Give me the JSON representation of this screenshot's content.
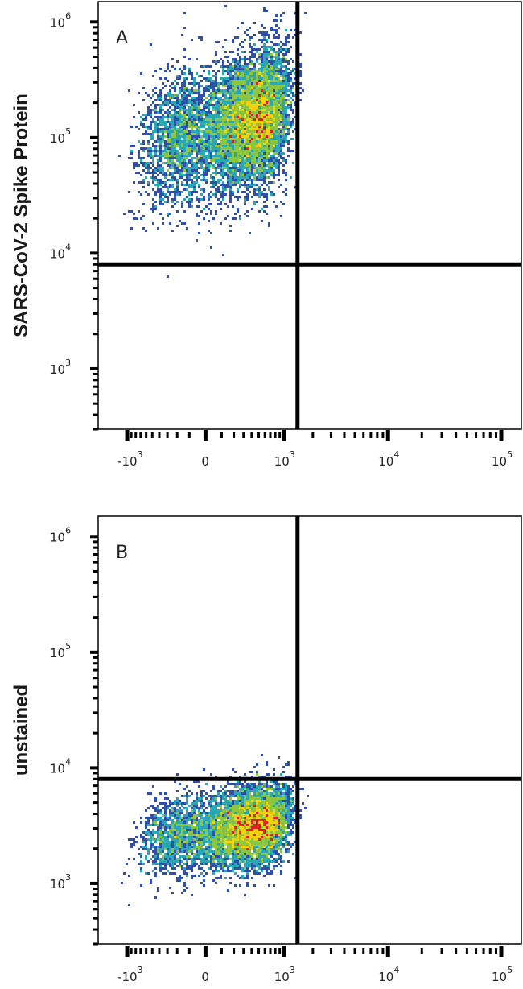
{
  "chart_data": [
    {
      "type": "scatter",
      "panel_label": "A",
      "ylabel": "SARS-CoV-2 Spike Protein",
      "xlabel": "",
      "x_scale": "biexponential",
      "y_scale": "log",
      "xlim": [
        -2000,
        150000
      ],
      "ylim": [
        300,
        1500000
      ],
      "x_ticks": [
        {
          "value": -1000,
          "base": "-10",
          "exp": "3"
        },
        {
          "value": 0,
          "base": "0",
          "exp": ""
        },
        {
          "value": 1000,
          "base": "10",
          "exp": "3"
        },
        {
          "value": 10000,
          "base": "10",
          "exp": "4"
        },
        {
          "value": 100000,
          "base": "10",
          "exp": "5"
        }
      ],
      "y_ticks": [
        {
          "value": 1000,
          "base": "10",
          "exp": "3"
        },
        {
          "value": 10000,
          "base": "10",
          "exp": "4"
        },
        {
          "value": 100000,
          "base": "10",
          "exp": "5"
        },
        {
          "value": 1000000,
          "base": "10",
          "exp": "6"
        }
      ],
      "gates": {
        "x": 1400,
        "y": 8000
      },
      "population": {
        "center_x": 300,
        "center_y": 130000,
        "spread_x": 380,
        "spread_log10_y": 0.28,
        "tilt": 0.35
      },
      "grid": false,
      "legend": "none"
    },
    {
      "type": "scatter",
      "panel_label": "B",
      "ylabel": "unstained",
      "xlabel": "",
      "x_scale": "biexponential",
      "y_scale": "log",
      "xlim": [
        -2000,
        150000
      ],
      "ylim": [
        300,
        1500000
      ],
      "x_ticks": [
        {
          "value": -1000,
          "base": "-10",
          "exp": "3"
        },
        {
          "value": 0,
          "base": "0",
          "exp": ""
        },
        {
          "value": 1000,
          "base": "10",
          "exp": "3"
        },
        {
          "value": 10000,
          "base": "10",
          "exp": "4"
        },
        {
          "value": 100000,
          "base": "10",
          "exp": "5"
        }
      ],
      "y_ticks": [
        {
          "value": 1000,
          "base": "10",
          "exp": "3"
        },
        {
          "value": 10000,
          "base": "10",
          "exp": "4"
        },
        {
          "value": 100000,
          "base": "10",
          "exp": "5"
        },
        {
          "value": 1000000,
          "base": "10",
          "exp": "6"
        }
      ],
      "gates": {
        "x": 1400,
        "y": 8000
      },
      "population": {
        "center_x": 300,
        "center_y": 3000,
        "spread_x": 380,
        "spread_log10_y": 0.17,
        "tilt": 0.3
      },
      "grid": false,
      "legend": "none"
    }
  ],
  "colors": {
    "density_low": "#2f4fa8",
    "density_mid_low": "#2aa7b5",
    "density_mid": "#8cc63f",
    "density_mid_high": "#f2d20a",
    "density_high": "#e02020",
    "gate_line": "#000000",
    "frame": "#000000"
  }
}
